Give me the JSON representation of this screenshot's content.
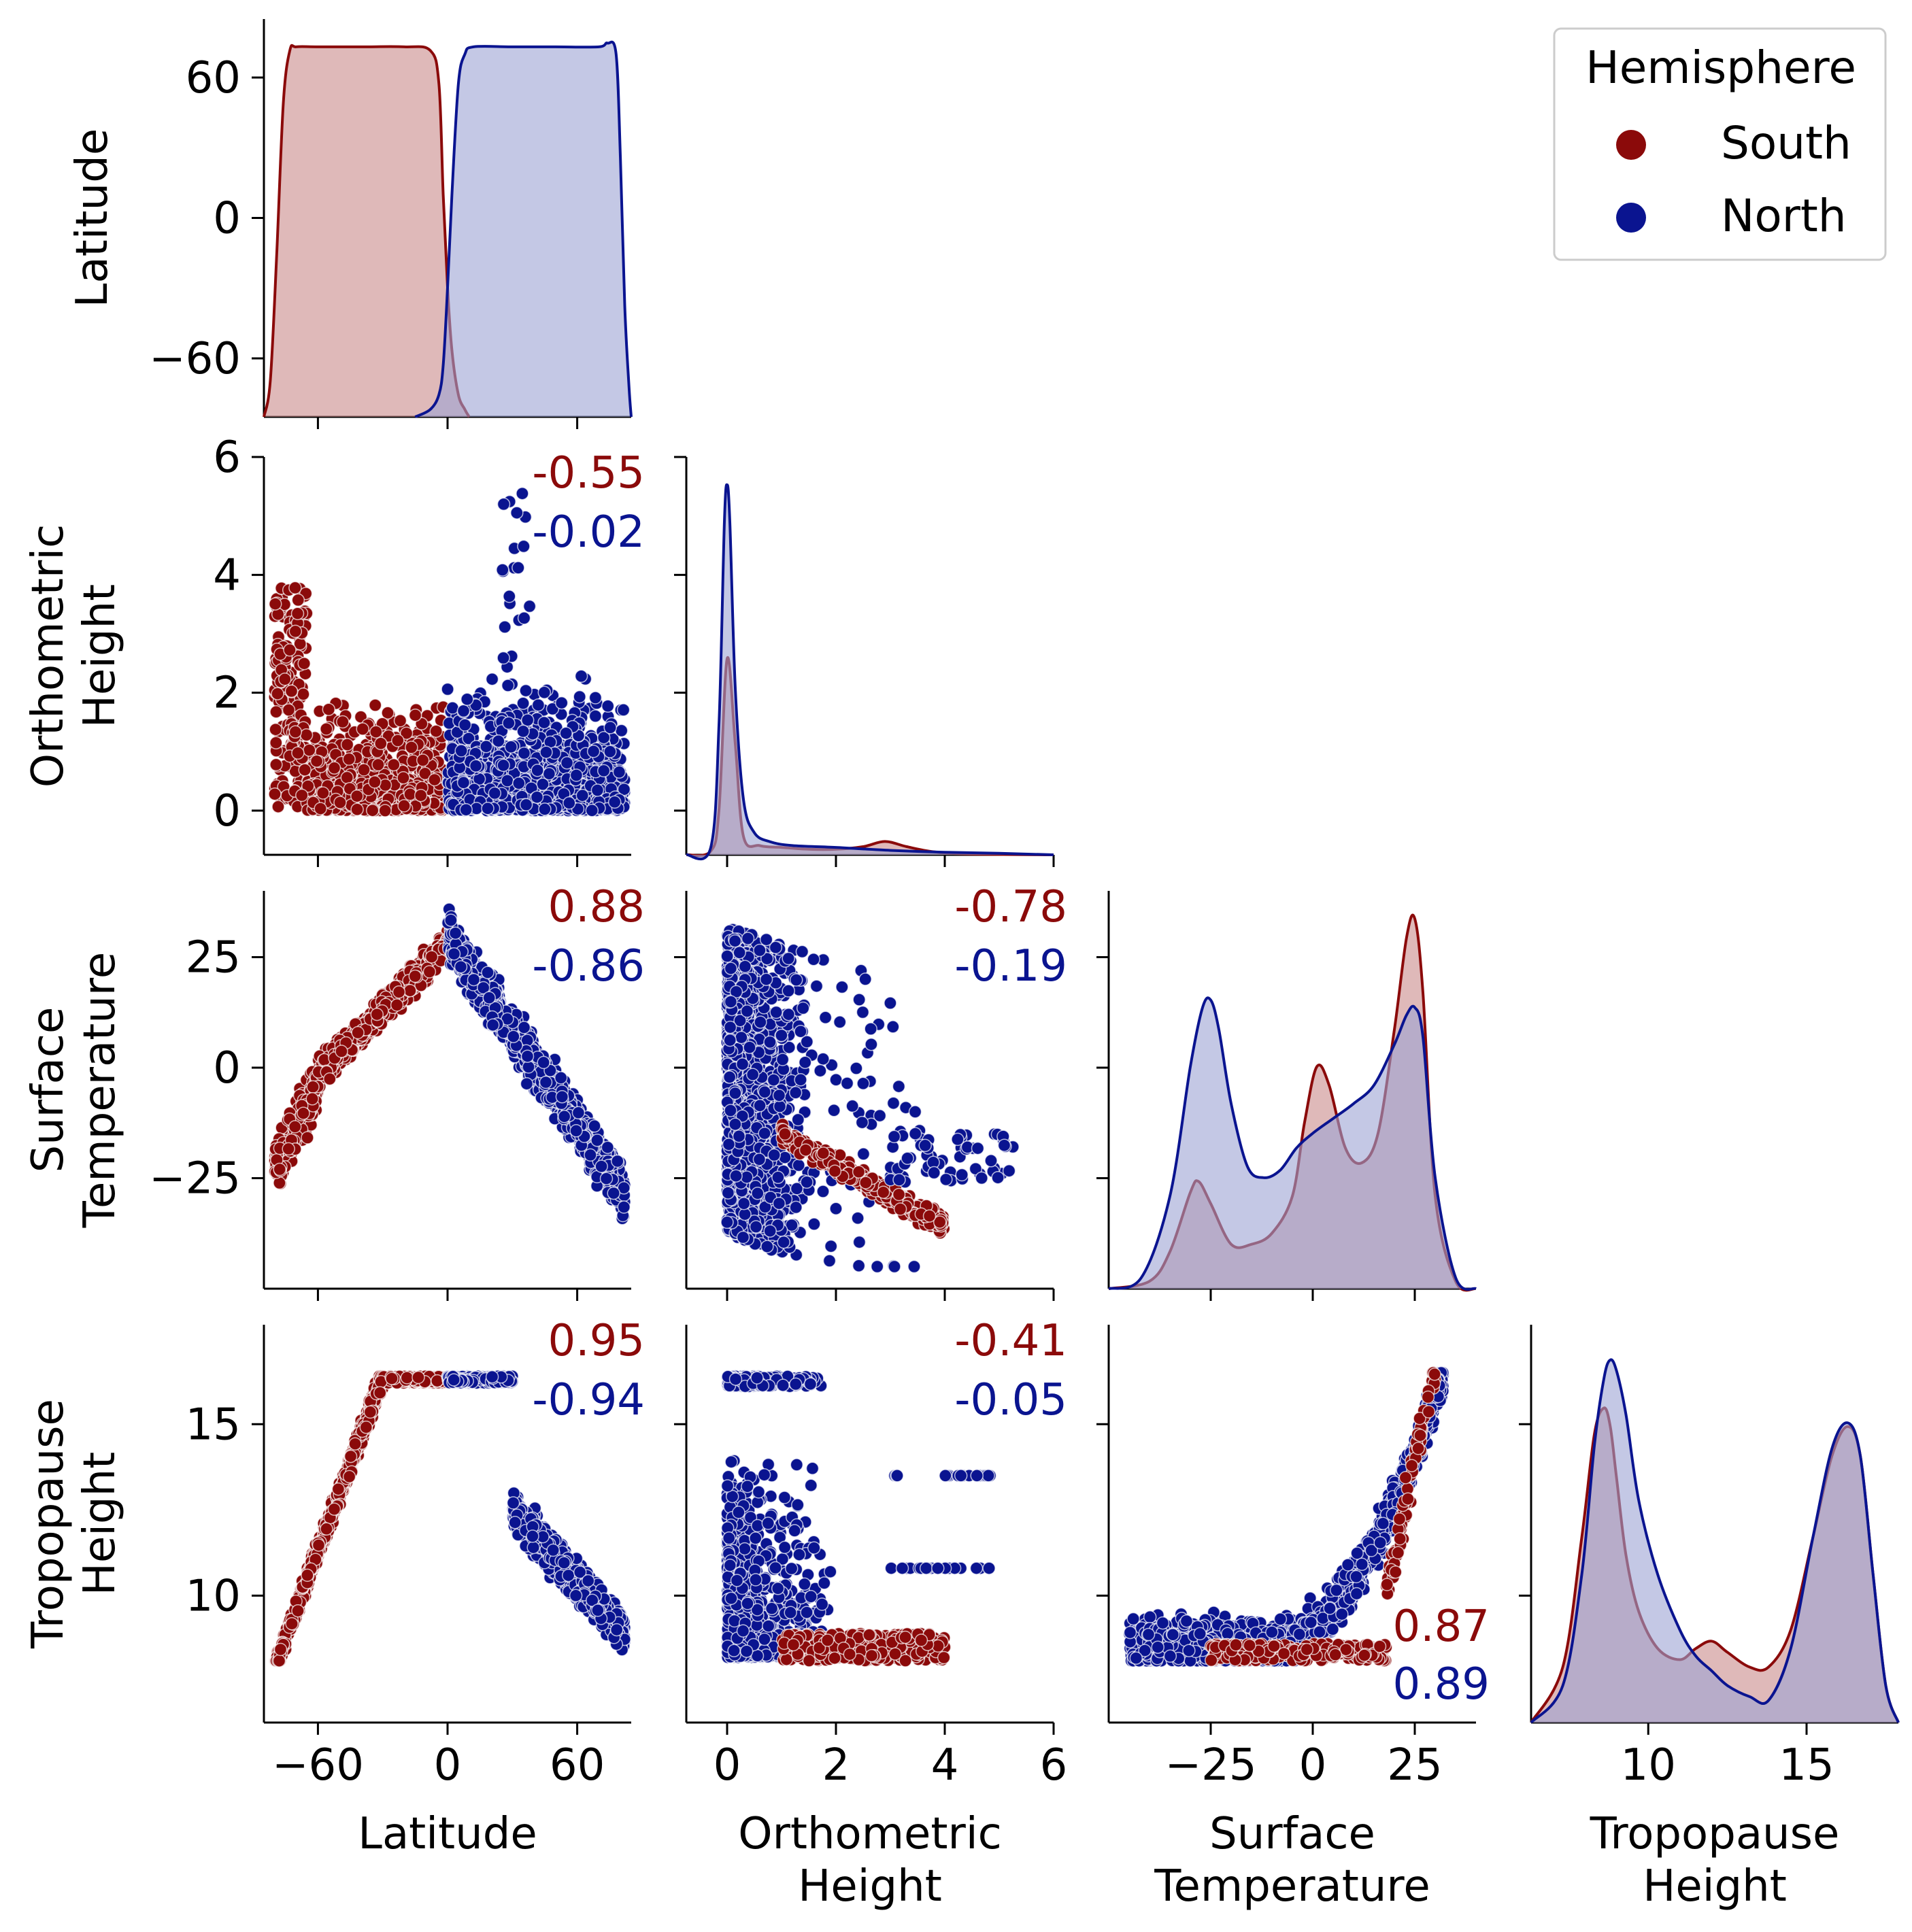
{
  "colors": {
    "south": "#8b0a0a",
    "north": "#0a1490",
    "south_fill": "#c98b8b",
    "north_fill": "#9ca3d4",
    "axis": "#000000"
  },
  "legend": {
    "title": "Hemisphere",
    "placement": "top-right",
    "items": [
      {
        "label": "South",
        "series": "south"
      },
      {
        "label": "North",
        "series": "north"
      }
    ]
  },
  "chart_data": {
    "type": "scatter",
    "title": "",
    "kind": "pair-plot (lower triangle, KDE diagonal)",
    "variables": [
      {
        "key": "lat",
        "label_lines": [
          "Latitude"
        ],
        "range": [
          -85,
          85
        ],
        "ticks": [
          -60,
          0,
          60
        ],
        "tick_labels": [
          "−60",
          "0",
          "60"
        ]
      },
      {
        "key": "oh",
        "label_lines": [
          "Orthometric",
          "Height"
        ],
        "range": [
          -0.75,
          6.0
        ],
        "ticks": [
          0,
          2,
          4,
          6
        ],
        "tick_labels": [
          "0",
          "2",
          "4",
          "6"
        ]
      },
      {
        "key": "st",
        "label_lines": [
          "Surface",
          "Temperature"
        ],
        "range": [
          -50,
          40
        ],
        "ticks": [
          -25,
          0,
          25
        ],
        "tick_labels": [
          "−25",
          "0",
          "25"
        ]
      },
      {
        "key": "tp",
        "label_lines": [
          "Tropopause",
          "Height"
        ],
        "range": [
          6.3,
          17.9
        ],
        "ticks": [
          10,
          15
        ],
        "tick_labels": [
          "10",
          "15"
        ]
      }
    ],
    "diagonal_kde": [
      {
        "var": "lat",
        "series": [
          {
            "name": "South",
            "x": [
              -85,
              -82,
              -79,
              -76,
              -73,
              -70,
              -60,
              -40,
              -20,
              -8,
              -4,
              -2,
              0,
              2,
              5,
              8,
              10
            ],
            "density": [
              0.0,
              0.1,
              0.45,
              0.85,
              0.99,
              1.0,
              1.0,
              1.0,
              1.0,
              0.99,
              0.9,
              0.6,
              0.35,
              0.18,
              0.06,
              0.02,
              0.0
            ]
          },
          {
            "name": "North",
            "x": [
              -15,
              -8,
              -4,
              -2,
              0,
              2,
              5,
              8,
              12,
              30,
              50,
              70,
              74,
              78,
              80,
              82,
              84,
              85
            ],
            "density": [
              0.0,
              0.02,
              0.06,
              0.14,
              0.35,
              0.6,
              0.9,
              0.98,
              1.0,
              1.0,
              1.0,
              1.0,
              1.01,
              0.98,
              0.7,
              0.3,
              0.08,
              0.0
            ]
          }
        ]
      },
      {
        "var": "oh",
        "series": [
          {
            "name": "South",
            "x": [
              -0.75,
              -0.3,
              -0.15,
              0.0,
              0.15,
              0.3,
              0.6,
              1.0,
              1.5,
              2.0,
              2.5,
              2.9,
              3.3,
              3.8,
              4.5,
              6.0
            ],
            "density": [
              0.0,
              0.01,
              0.12,
              0.53,
              0.3,
              0.05,
              0.025,
              0.02,
              0.015,
              0.015,
              0.022,
              0.036,
              0.022,
              0.008,
              0.002,
              0.0
            ]
          },
          {
            "name": "North",
            "x": [
              -0.75,
              -0.3,
              -0.15,
              -0.05,
              0.0,
              0.05,
              0.15,
              0.3,
              0.5,
              0.8,
              1.2,
              2.0,
              3.0,
              4.0,
              5.0,
              6.0
            ],
            "density": [
              0.0,
              0.02,
              0.35,
              0.9,
              1.0,
              0.9,
              0.45,
              0.15,
              0.06,
              0.035,
              0.025,
              0.02,
              0.012,
              0.007,
              0.004,
              0.0
            ]
          }
        ]
      },
      {
        "var": "st",
        "series": [
          {
            "name": "South",
            "x": [
              -50,
              -40,
              -35,
              -30,
              -28,
              -25,
              -20,
              -15,
              -10,
              -5,
              -2,
              1,
              4,
              8,
              12,
              16,
              20,
              23,
              25,
              27,
              30,
              35,
              40
            ],
            "density": [
              0.0,
              0.02,
              0.1,
              0.26,
              0.29,
              0.23,
              0.12,
              0.12,
              0.15,
              0.25,
              0.45,
              0.6,
              0.55,
              0.38,
              0.34,
              0.42,
              0.7,
              0.95,
              1.0,
              0.8,
              0.25,
              0.02,
              0.0
            ]
          },
          {
            "name": "North",
            "x": [
              -50,
              -42,
              -35,
              -30,
              -27,
              -25,
              -23,
              -20,
              -16,
              -12,
              -8,
              -4,
              0,
              5,
              10,
              15,
              20,
              23,
              25,
              27,
              30,
              35,
              40
            ],
            "density": [
              0.0,
              0.03,
              0.25,
              0.6,
              0.76,
              0.78,
              0.7,
              0.5,
              0.33,
              0.3,
              0.32,
              0.38,
              0.42,
              0.46,
              0.5,
              0.55,
              0.66,
              0.74,
              0.76,
              0.68,
              0.3,
              0.03,
              0.0
            ]
          }
        ]
      },
      {
        "var": "tp",
        "series": [
          {
            "name": "South",
            "x": [
              6.3,
              7.3,
              7.9,
              8.3,
              8.6,
              8.8,
              9.0,
              9.3,
              9.7,
              10.3,
              11.0,
              11.5,
              12.0,
              12.5,
              13.2,
              13.8,
              14.5,
              15.2,
              15.8,
              16.3,
              16.7,
              17.1,
              17.5,
              17.9
            ],
            "density": [
              0.0,
              0.15,
              0.5,
              0.78,
              0.85,
              0.8,
              0.66,
              0.45,
              0.3,
              0.2,
              0.17,
              0.2,
              0.22,
              0.19,
              0.15,
              0.15,
              0.25,
              0.5,
              0.72,
              0.8,
              0.72,
              0.4,
              0.1,
              0.0
            ]
          },
          {
            "name": "North",
            "x": [
              6.3,
              7.3,
              7.9,
              8.3,
              8.6,
              8.8,
              9.0,
              9.3,
              9.7,
              10.3,
              11.0,
              11.5,
              12.0,
              12.5,
              13.2,
              13.8,
              14.5,
              15.2,
              15.8,
              16.3,
              16.7,
              17.1,
              17.5,
              17.9
            ],
            "density": [
              0.0,
              0.1,
              0.4,
              0.75,
              0.93,
              0.98,
              0.95,
              0.83,
              0.6,
              0.4,
              0.25,
              0.18,
              0.14,
              0.1,
              0.07,
              0.06,
              0.2,
              0.5,
              0.74,
              0.81,
              0.72,
              0.4,
              0.1,
              0.0
            ]
          }
        ]
      }
    ],
    "scatter_panels": [
      {
        "row": "oh",
        "col": "lat",
        "r_south": "-0.55",
        "r_north": "-0.02",
        "label_position": "top-right"
      },
      {
        "row": "st",
        "col": "lat",
        "r_south": "0.88",
        "r_north": "-0.86",
        "label_position": "top-right"
      },
      {
        "row": "st",
        "col": "oh",
        "r_south": "-0.78",
        "r_north": "-0.19",
        "label_position": "top-right"
      },
      {
        "row": "tp",
        "col": "lat",
        "r_south": "0.95",
        "r_north": "-0.94",
        "label_position": "top-right"
      },
      {
        "row": "tp",
        "col": "oh",
        "r_south": "-0.41",
        "r_north": "-0.05",
        "label_position": "top-right"
      },
      {
        "row": "tp",
        "col": "st",
        "r_south": "0.87",
        "r_north": "0.89",
        "label_position": "bottom-right"
      }
    ]
  }
}
